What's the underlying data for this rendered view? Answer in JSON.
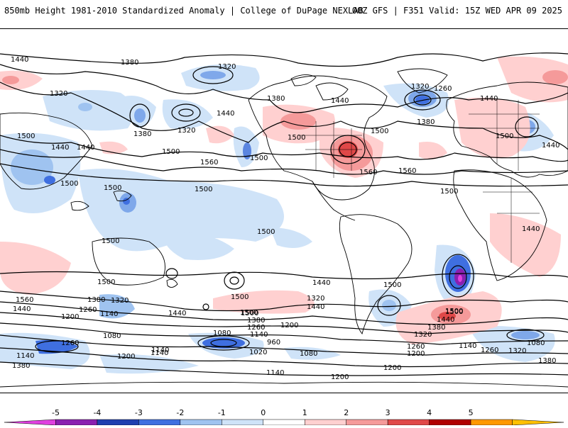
{
  "header": {
    "title": "850mb Height 1981-2010 Standardized Anomaly | College of DuPage NEXLAB",
    "run_info": "00Z GFS | F351 Valid: 15Z WED APR 09 2025"
  },
  "colorbar": {
    "labels": [
      "-5",
      "-4",
      "-3",
      "-2",
      "-1",
      "0",
      "1",
      "2",
      "3",
      "4",
      "5"
    ],
    "colors": [
      "#e040e0",
      "#8a1fb0",
      "#1f3fb0",
      "#3f6fe0",
      "#9fc3f0",
      "#cfe3f8",
      "#ffffff",
      "#ffd0d0",
      "#f59a9a",
      "#e04848",
      "#b00000",
      "#ff9800",
      "#ffc000"
    ]
  },
  "contour_labels": [
    {
      "text": "1440"
    },
    {
      "text": "1380"
    },
    {
      "text": "1320"
    },
    {
      "text": "1320"
    },
    {
      "text": "1320"
    },
    {
      "text": "1260"
    },
    {
      "text": "1440"
    },
    {
      "text": "1380"
    },
    {
      "text": "1440"
    },
    {
      "text": "1440"
    },
    {
      "text": "1500"
    },
    {
      "text": "1440"
    },
    {
      "text": "1440"
    },
    {
      "text": "1380"
    },
    {
      "text": "1320"
    },
    {
      "text": "1380"
    },
    {
      "text": "1440"
    },
    {
      "text": "1500"
    },
    {
      "text": "1500"
    },
    {
      "text": "1560"
    },
    {
      "text": "1500"
    },
    {
      "text": "1500"
    },
    {
      "text": "1500"
    },
    {
      "text": "1500"
    },
    {
      "text": "1560"
    },
    {
      "text": "1500"
    },
    {
      "text": "1560"
    },
    {
      "text": "1500"
    },
    {
      "text": "1500"
    },
    {
      "text": "1500"
    },
    {
      "text": "1440"
    },
    {
      "text": "1500"
    },
    {
      "text": "1440"
    },
    {
      "text": "1500"
    },
    {
      "text": "1500"
    },
    {
      "text": "1500"
    },
    {
      "text": "1500"
    },
    {
      "text": "1500"
    },
    {
      "text": "1560"
    },
    {
      "text": "1440"
    },
    {
      "text": "1380"
    },
    {
      "text": "1320"
    },
    {
      "text": "1260"
    },
    {
      "text": "1140"
    },
    {
      "text": "1200"
    },
    {
      "text": "1080"
    },
    {
      "text": "1260"
    },
    {
      "text": "1140"
    },
    {
      "text": "1380"
    },
    {
      "text": "1200"
    },
    {
      "text": "1440"
    },
    {
      "text": "1500"
    },
    {
      "text": "1380"
    },
    {
      "text": "1260"
    },
    {
      "text": "1140"
    },
    {
      "text": "1080"
    },
    {
      "text": "960"
    },
    {
      "text": "1020"
    },
    {
      "text": "1140"
    },
    {
      "text": "1200"
    },
    {
      "text": "1320"
    },
    {
      "text": "1440"
    },
    {
      "text": "1200"
    },
    {
      "text": "1080"
    },
    {
      "text": "1140"
    },
    {
      "text": "1200"
    },
    {
      "text": "1500"
    },
    {
      "text": "1440"
    },
    {
      "text": "1380"
    },
    {
      "text": "1320"
    },
    {
      "text": "1260"
    },
    {
      "text": "1200"
    },
    {
      "text": "1140"
    },
    {
      "text": "1260"
    },
    {
      "text": "1320"
    },
    {
      "text": "1080"
    },
    {
      "text": "1380"
    },
    {
      "text": "1140"
    }
  ]
}
